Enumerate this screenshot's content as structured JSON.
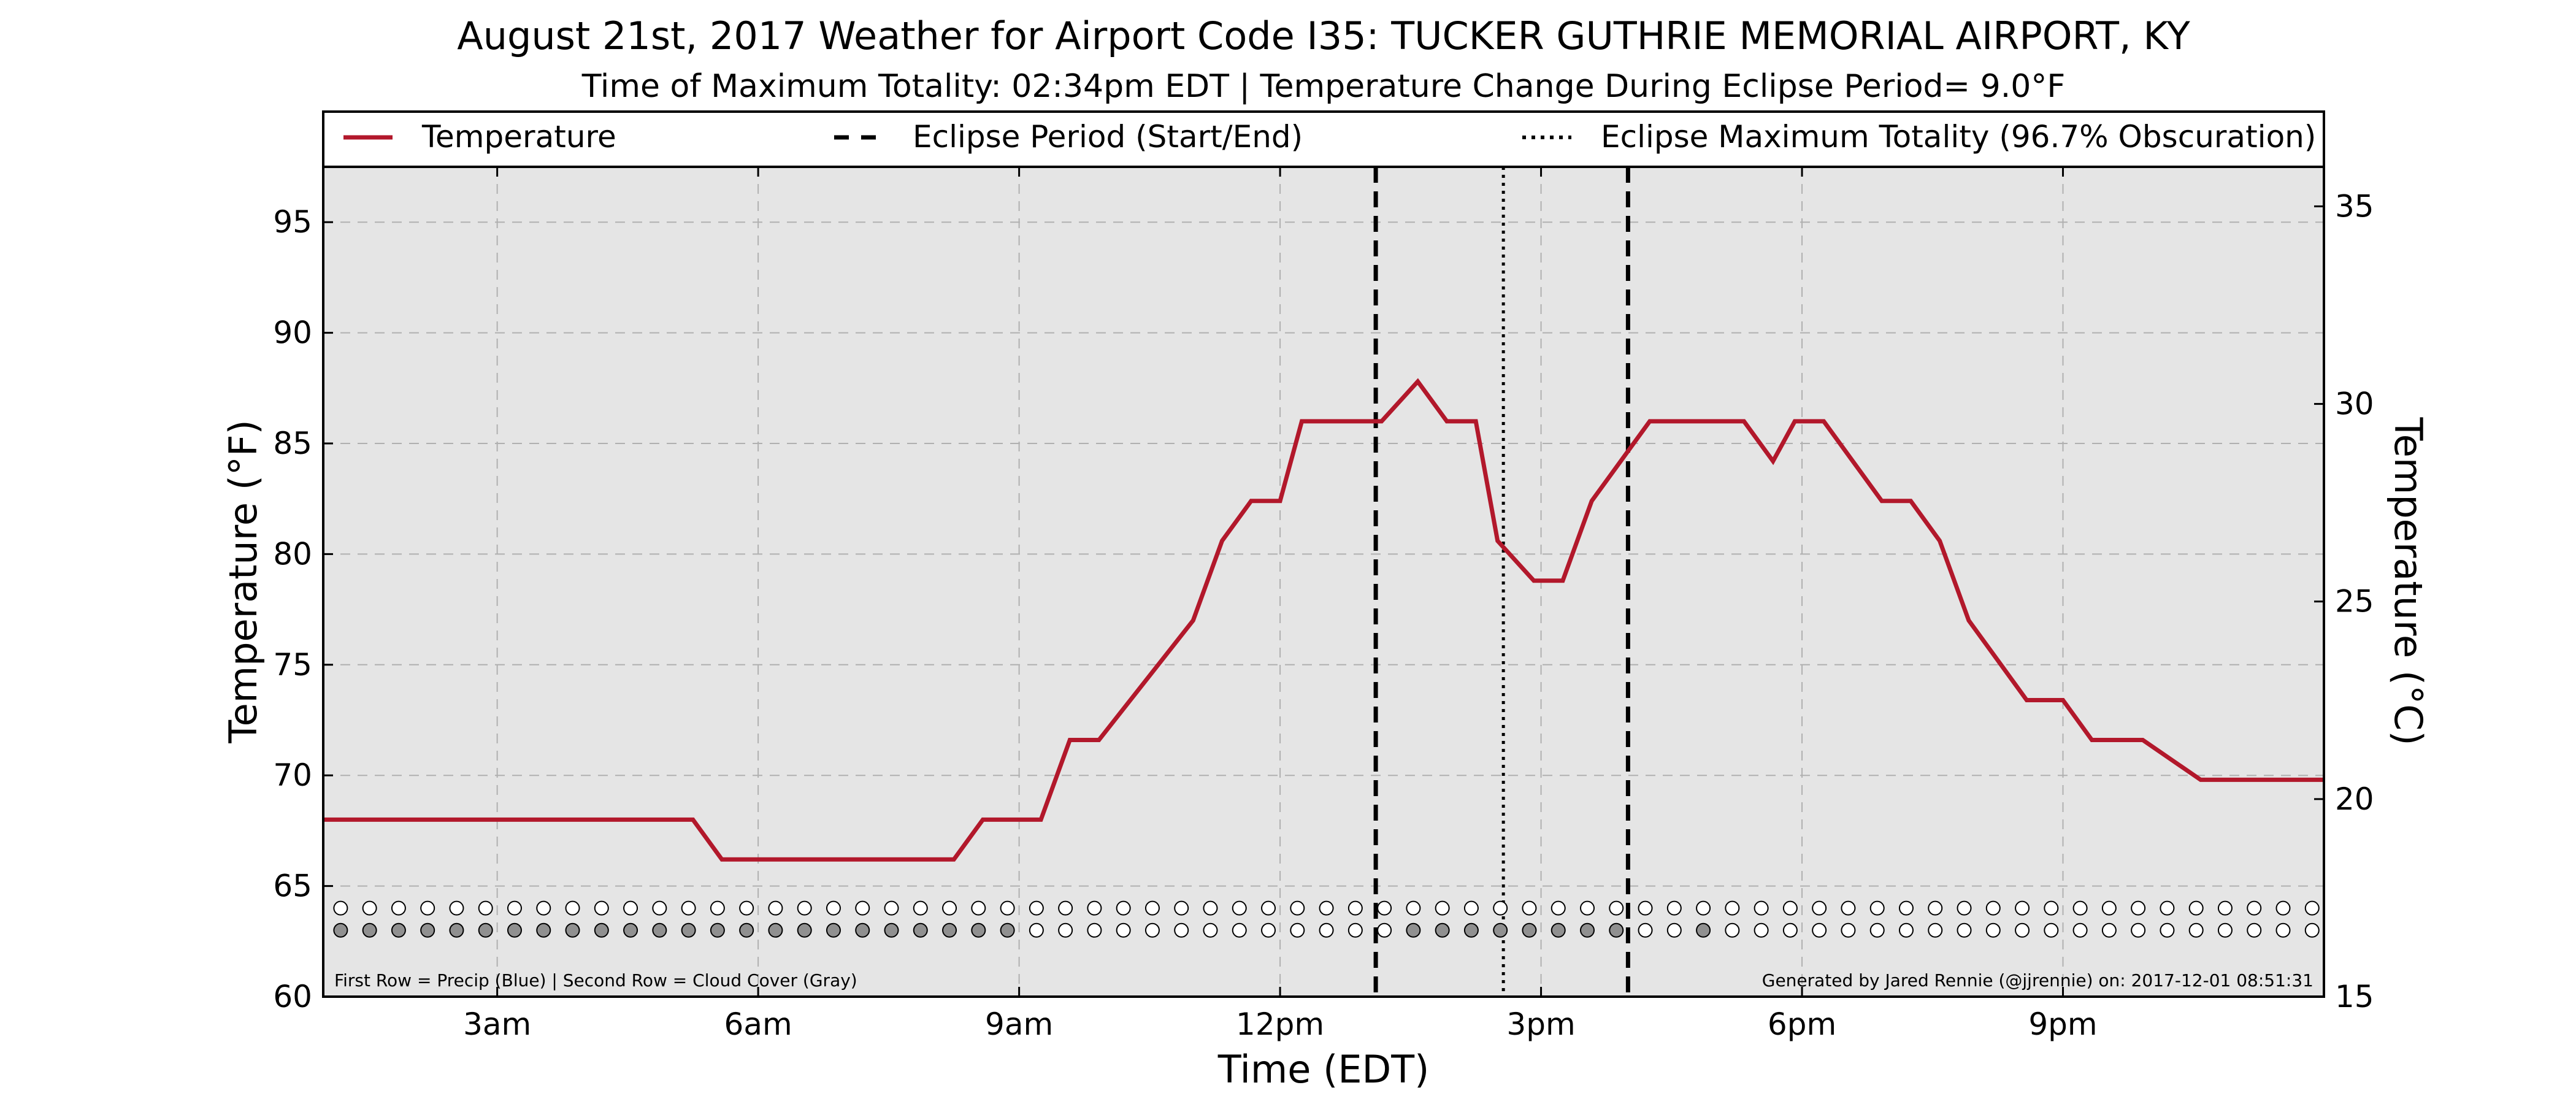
{
  "chart_data": {
    "type": "line",
    "title": "August 21st, 2017 Weather for Airport Code I35: TUCKER GUTHRIE MEMORIAL AIRPORT, KY",
    "subtitle": "Time of Maximum Totality: 02:34pm EDT | Temperature Change During Eclipse Period= 9.0°F",
    "xlabel": "Time (EDT)",
    "ylabel": "Temperature (°F)",
    "ylabel_right": "Temperature (°C)",
    "xlim": [
      1.0,
      24.0
    ],
    "ylim": [
      60,
      97.5
    ],
    "ylim_right": [
      15,
      36
    ],
    "x_ticks": [
      {
        "x": 3,
        "label": "3am"
      },
      {
        "x": 6,
        "label": "6am"
      },
      {
        "x": 9,
        "label": "9am"
      },
      {
        "x": 12,
        "label": "12pm"
      },
      {
        "x": 15,
        "label": "3pm"
      },
      {
        "x": 18,
        "label": "6pm"
      },
      {
        "x": 21,
        "label": "9pm"
      }
    ],
    "y_ticks": [
      60,
      65,
      70,
      75,
      80,
      85,
      90,
      95
    ],
    "y_ticks_right": [
      15,
      20,
      25,
      30,
      35
    ],
    "grid": true,
    "legend": {
      "placement": "top",
      "entries": [
        {
          "label": "Temperature",
          "style": "solid",
          "color": "#b2182b"
        },
        {
          "label": "Eclipse Period (Start/End)",
          "style": "dashed",
          "color": "#000000"
        },
        {
          "label": "Eclipse Maximum Totality (96.7% Obscuration)",
          "style": "dotted",
          "color": "#000000"
        }
      ]
    },
    "series": [
      {
        "name": "Temperature",
        "color": "#b2182b",
        "x": [
          1.0,
          5.25,
          5.583,
          8.25,
          8.583,
          9.25,
          9.583,
          9.917,
          11.0,
          11.333,
          11.667,
          12.0,
          12.25,
          13.167,
          13.583,
          13.917,
          14.25,
          14.5,
          14.917,
          15.25,
          15.583,
          16.25,
          16.583,
          17.333,
          17.667,
          17.917,
          18.25,
          18.917,
          19.25,
          19.583,
          19.917,
          20.25,
          20.583,
          21.0,
          21.333,
          21.583,
          21.917,
          22.583,
          22.917,
          24.0
        ],
        "y": [
          68,
          68,
          66.2,
          66.2,
          68,
          68,
          71.6,
          71.6,
          77,
          80.6,
          82.4,
          82.4,
          86,
          86,
          87.8,
          86,
          86,
          80.6,
          78.8,
          78.8,
          82.4,
          86,
          86,
          86,
          84.2,
          86,
          86,
          82.4,
          82.4,
          80.6,
          77,
          75.2,
          73.4,
          73.4,
          71.6,
          71.6,
          71.6,
          69.8,
          69.8,
          69.8
        ]
      }
    ],
    "eclipse_start": 13.1,
    "eclipse_end": 16.0,
    "max_totality": 14.567,
    "indicator_rows": {
      "precip_y": 64,
      "cloud_y": 63,
      "x_start": 1.2,
      "x_step": 0.3333,
      "count": 69,
      "cloud_filled_ranges": [
        [
          1.2,
          9.0
        ],
        [
          13.5,
          16.1
        ],
        [
          16.6,
          17.1
        ],
        [
          23.9,
          24.0
        ]
      ],
      "precip_color": "#ffffff",
      "cloud_color_filled": "#909090",
      "cloud_color_empty": "#ffffff"
    },
    "footnote_left": "First Row = Precip (Blue) | Second Row = Cloud Cover (Gray)",
    "footnote_right": "Generated by Jared Rennie (@jjrennie) on: 2017-12-01 08:51:31",
    "colors": {
      "plot_background": "#e5e5e5",
      "temperature_line": "#b2182b",
      "eclipse_lines": "#000000",
      "grid": "#b0b0b0"
    }
  }
}
